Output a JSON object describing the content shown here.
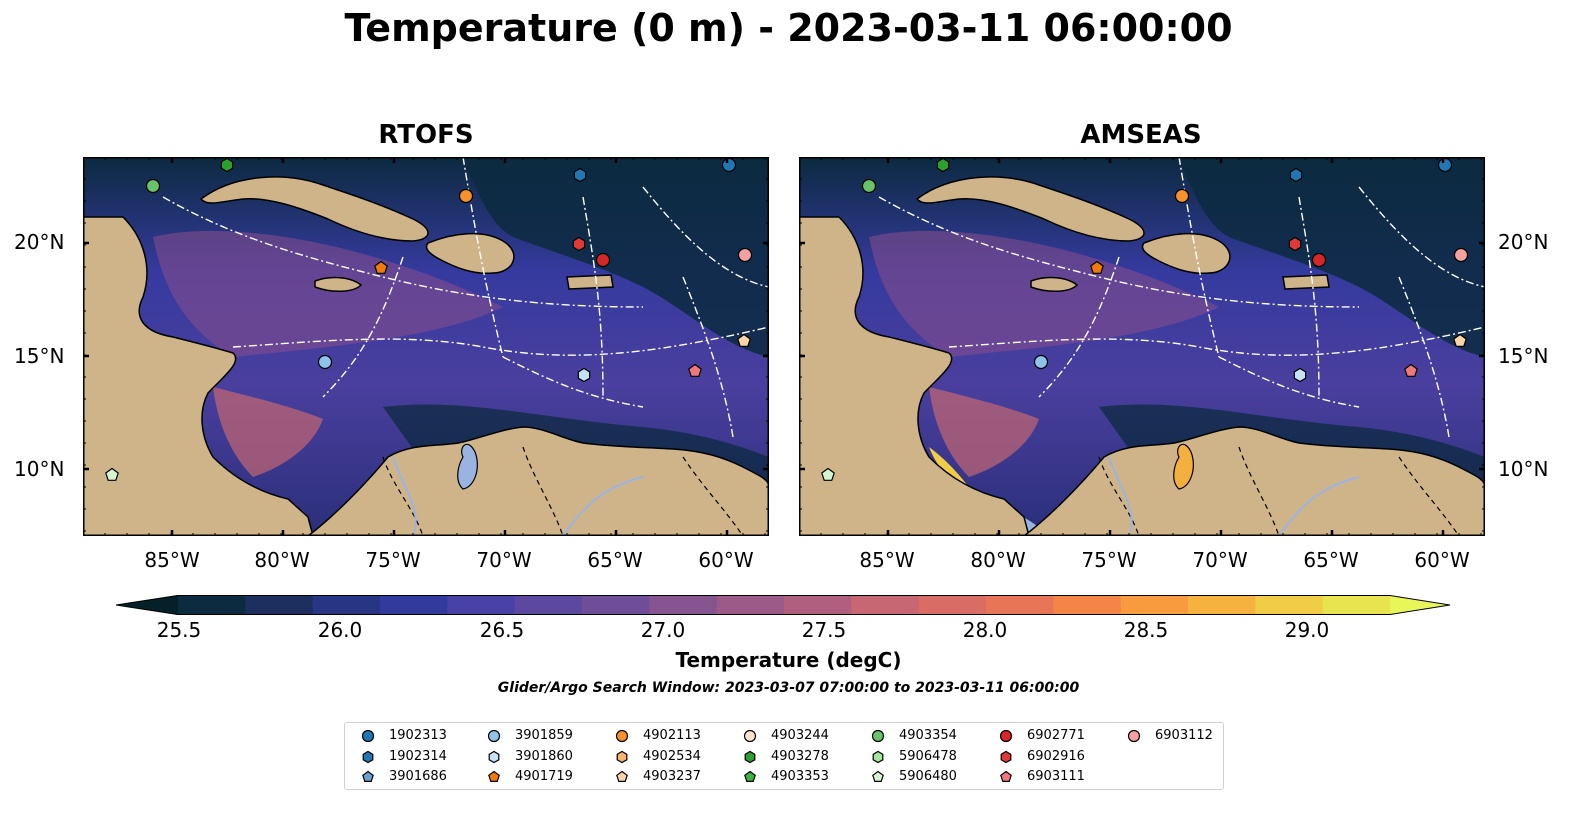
{
  "title": "Temperature (0 m) - 2023-03-11 06:00:00",
  "panels": [
    {
      "title": "RTOFS",
      "model": "rtofs"
    },
    {
      "title": "AMSEAS",
      "model": "amseas"
    }
  ],
  "lat_labels": [
    "20°N",
    "15°N",
    "10°N"
  ],
  "lon_labels": [
    "85°W",
    "80°W",
    "75°W",
    "70°W",
    "65°W",
    "60°W"
  ],
  "colorbar": {
    "label": "Temperature (degC)",
    "ticks": [
      "25.5",
      "26.0",
      "26.5",
      "27.0",
      "27.5",
      "28.0",
      "28.5",
      "29.0"
    ],
    "colors": [
      "#0c2a40",
      "#1c2f5f",
      "#263584",
      "#333a9e",
      "#4842a6",
      "#5d489f",
      "#704d98",
      "#86548f",
      "#9b5a88",
      "#b0607e",
      "#c76774",
      "#d96c64",
      "#e87656",
      "#f48546",
      "#f89a3e",
      "#f6b23f",
      "#f1cc47",
      "#e8e450"
    ],
    "extend_low": "#06202a",
    "extend_high": "#e9f65a"
  },
  "search_window": "Glider/Argo Search Window: 2023-03-07 07:00:00 to 2023-03-11 06:00:00",
  "legend": [
    {
      "id": "1902313",
      "marker": "circle",
      "color": "#1f77b4"
    },
    {
      "id": "1902314",
      "marker": "hexagon",
      "color": "#1f77b4"
    },
    {
      "id": "3901686",
      "marker": "pentagon",
      "color": "#6aa0d2"
    },
    {
      "id": "3901859",
      "marker": "circle",
      "color": "#8ec4ea"
    },
    {
      "id": "3901860",
      "marker": "hexagon",
      "color": "#c6e2f6"
    },
    {
      "id": "4901719",
      "marker": "pentagon",
      "color": "#f07a0a"
    },
    {
      "id": "4902113",
      "marker": "circle",
      "color": "#f7922a"
    },
    {
      "id": "4902534",
      "marker": "hexagon",
      "color": "#fbb26a"
    },
    {
      "id": "4903237",
      "marker": "pentagon",
      "color": "#fdd3a8"
    },
    {
      "id": "4903244",
      "marker": "circle",
      "color": "#fde2c8"
    },
    {
      "id": "4903278",
      "marker": "hexagon",
      "color": "#2ca02c"
    },
    {
      "id": "4903353",
      "marker": "pentagon",
      "color": "#3fb33f"
    },
    {
      "id": "4903354",
      "marker": "circle",
      "color": "#68c468"
    },
    {
      "id": "5906478",
      "marker": "hexagon",
      "color": "#a5e5a0"
    },
    {
      "id": "5906480",
      "marker": "pentagon",
      "color": "#d4f5cf"
    },
    {
      "id": "6902771",
      "marker": "circle",
      "color": "#d62728"
    },
    {
      "id": "6902916",
      "marker": "hexagon",
      "color": "#e0393a"
    },
    {
      "id": "6903111",
      "marker": "pentagon",
      "color": "#f0787a"
    },
    {
      "id": "6903112",
      "marker": "circle",
      "color": "#f7a0a0"
    }
  ],
  "map_colors": {
    "land": "#cfb48a",
    "ocean_dark": "#0c2a40",
    "ocean_mid": "#4a3f9e",
    "ocean_warm": "#8a4f8d",
    "pacific_masked": "#96b4e0"
  }
}
